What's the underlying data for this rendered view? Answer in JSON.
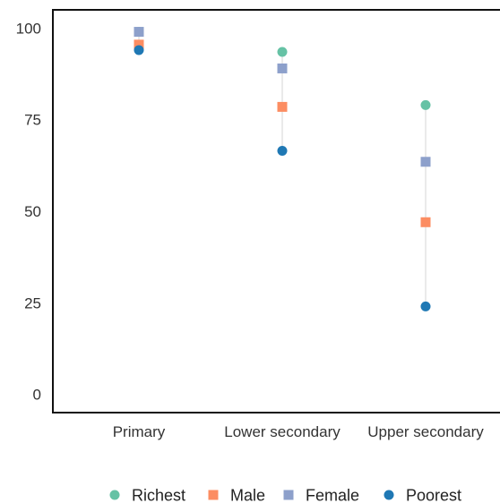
{
  "chart_data": {
    "type": "scatter",
    "categories": [
      "Primary",
      "Lower secondary",
      "Upper secondary"
    ],
    "ylim": [
      -5,
      105
    ],
    "yticks": [
      0,
      25,
      50,
      75,
      100
    ],
    "series": [
      {
        "name": "Richest",
        "marker": "circle",
        "color": "#66c2a5",
        "values": [
          99,
          93.5,
          79
        ]
      },
      {
        "name": "Male",
        "marker": "square",
        "color": "#fc8d62",
        "values": [
          95.5,
          78.5,
          47
        ]
      },
      {
        "name": "Female",
        "marker": "square",
        "color": "#8da0cb",
        "values": [
          99,
          89,
          63.5
        ]
      },
      {
        "name": "Poorest",
        "marker": "circle",
        "color": "#1f78b4",
        "values": [
          94,
          66.5,
          24
        ]
      }
    ],
    "range_line_color": "#dddddd",
    "legend_position": "bottom",
    "grid": false
  }
}
